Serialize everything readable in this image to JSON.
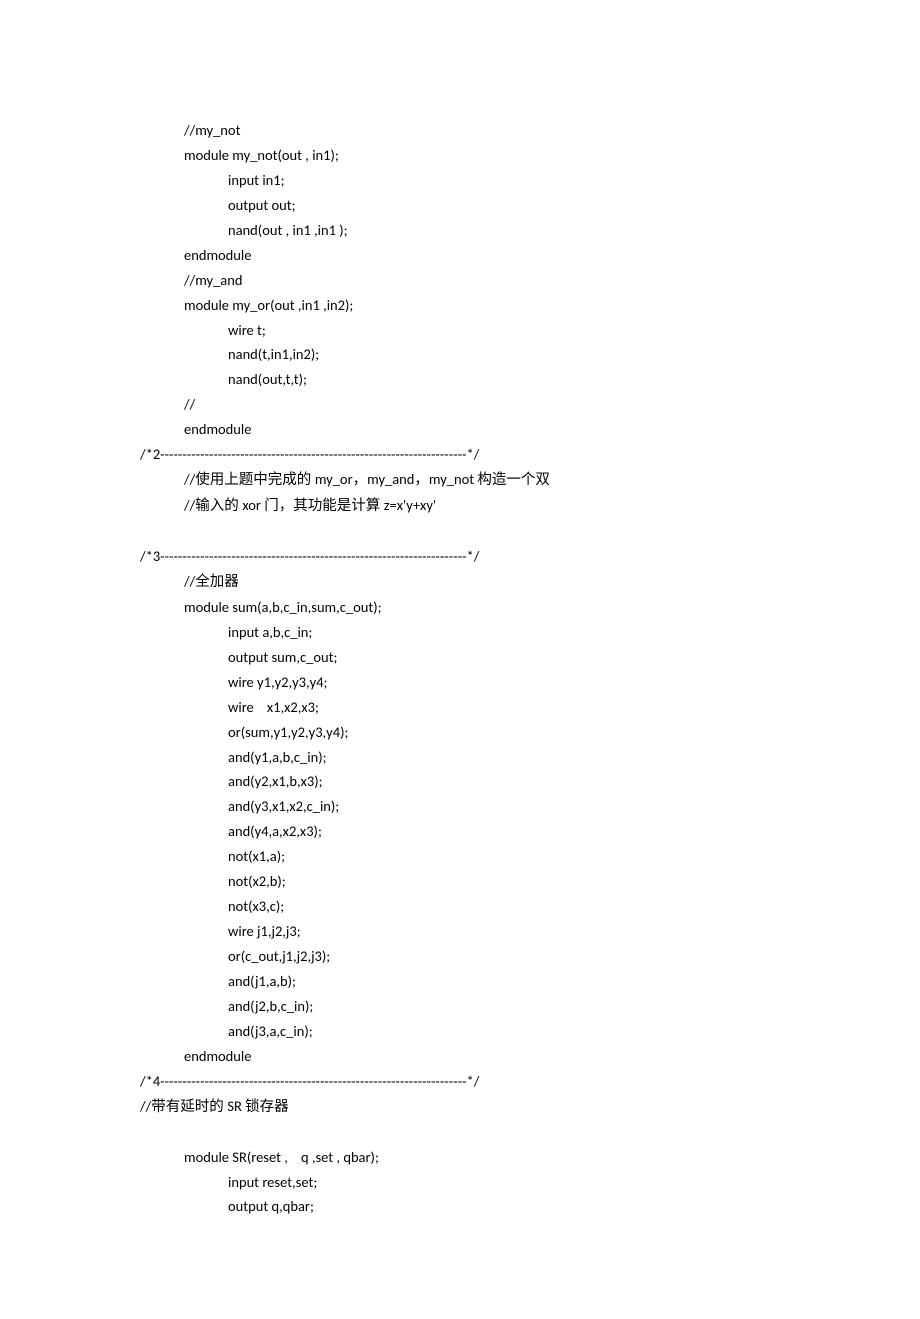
{
  "lines": [
    {
      "cls": "indent1",
      "text": "//my_not"
    },
    {
      "cls": "indent1",
      "text": "module my_not(out , in1);"
    },
    {
      "cls": "indent2",
      "text": "input in1;"
    },
    {
      "cls": "indent2",
      "text": "output out;"
    },
    {
      "cls": "indent2",
      "text": "nand(out , in1 ,in1 );"
    },
    {
      "cls": "indent1",
      "text": "endmodule"
    },
    {
      "cls": "indent1",
      "text": "//my_and"
    },
    {
      "cls": "indent1",
      "text": "module my_or(out ,in1 ,in2);"
    },
    {
      "cls": "indent2",
      "text": "wire t;"
    },
    {
      "cls": "indent2",
      "text": "nand(t,in1,in2);"
    },
    {
      "cls": "indent2",
      "text": "nand(out,t,t);"
    },
    {
      "cls": "indent1",
      "text": "//"
    },
    {
      "cls": "indent1",
      "text": "endmodule"
    },
    {
      "cls": "",
      "text": "/*2---------------------------------------------------------------------*/"
    },
    {
      "cls": "indent1",
      "parts": [
        {
          "t": "//",
          "cjk": false
        },
        {
          "t": "使用上题中完成的 ",
          "cjk": true
        },
        {
          "t": "my_or",
          "cjk": false
        },
        {
          "t": "，",
          "cjk": true
        },
        {
          "t": "my_and",
          "cjk": false
        },
        {
          "t": "，",
          "cjk": true
        },
        {
          "t": "my_not ",
          "cjk": false
        },
        {
          "t": "构造一个双",
          "cjk": true
        }
      ]
    },
    {
      "cls": "indent1",
      "parts": [
        {
          "t": "//",
          "cjk": false
        },
        {
          "t": "输入的 ",
          "cjk": true
        },
        {
          "t": "xor ",
          "cjk": false
        },
        {
          "t": "门，其功能是计算 ",
          "cjk": true
        },
        {
          "t": "z=x'y+xy'",
          "cjk": false
        }
      ]
    },
    {
      "blank": true
    },
    {
      "cls": "",
      "text": "/*3---------------------------------------------------------------------*/"
    },
    {
      "cls": "indent1",
      "parts": [
        {
          "t": "//",
          "cjk": false
        },
        {
          "t": "全加器",
          "cjk": true
        }
      ]
    },
    {
      "cls": "indent1",
      "text": "module sum(a,b,c_in,sum,c_out);"
    },
    {
      "cls": "indent2",
      "text": "input a,b,c_in;"
    },
    {
      "cls": "indent2",
      "text": "output sum,c_out;"
    },
    {
      "cls": "indent2",
      "text": "wire y1,y2,y3,y4;"
    },
    {
      "cls": "indent2",
      "text": "wire    x1,x2,x3;"
    },
    {
      "cls": "indent2",
      "text": "or(sum,y1,y2,y3,y4);"
    },
    {
      "cls": "indent2",
      "text": "and(y1,a,b,c_in);"
    },
    {
      "cls": "indent2",
      "text": "and(y2,x1,b,x3);"
    },
    {
      "cls": "indent2",
      "text": "and(y3,x1,x2,c_in);"
    },
    {
      "cls": "indent2",
      "text": "and(y4,a,x2,x3);"
    },
    {
      "cls": "indent2",
      "text": "not(x1,a);"
    },
    {
      "cls": "indent2",
      "text": "not(x2,b);"
    },
    {
      "cls": "indent2",
      "text": "not(x3,c);"
    },
    {
      "cls": "indent2",
      "text": "wire j1,j2,j3;"
    },
    {
      "cls": "indent2",
      "text": "or(c_out,j1,j2,j3);"
    },
    {
      "cls": "indent2",
      "text": "and(j1,a,b);"
    },
    {
      "cls": "indent2",
      "text": "and(j2,b,c_in);"
    },
    {
      "cls": "indent2",
      "text": "and(j3,a,c_in);"
    },
    {
      "cls": "indent1",
      "text": "endmodule"
    },
    {
      "cls": "",
      "text": "/*4---------------------------------------------------------------------*/"
    },
    {
      "cls": "",
      "parts": [
        {
          "t": "//",
          "cjk": false
        },
        {
          "t": "带有延时的 ",
          "cjk": true
        },
        {
          "t": "SR ",
          "cjk": false
        },
        {
          "t": "锁存器",
          "cjk": true
        }
      ]
    },
    {
      "blank": true
    },
    {
      "cls": "indent1",
      "text": "module SR(reset ,    q ,set , qbar);"
    },
    {
      "cls": "indent2",
      "text": "input reset,set;"
    },
    {
      "cls": "indent2",
      "text": "output q,qbar;"
    }
  ]
}
